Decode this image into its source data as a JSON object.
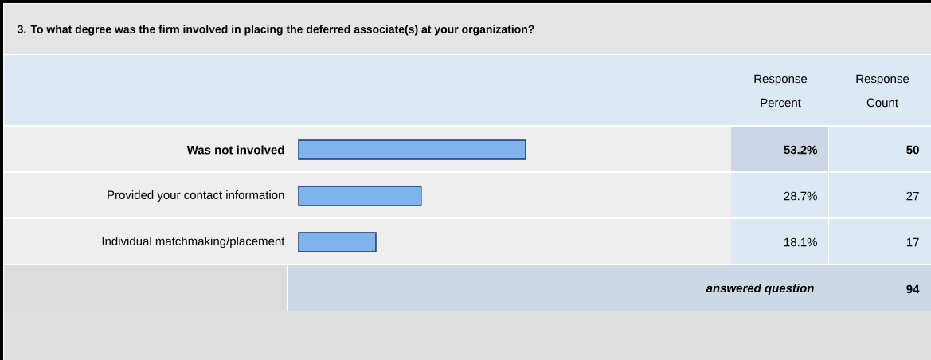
{
  "chart_data": {
    "type": "bar",
    "orientation": "horizontal",
    "title": "3. To what degree was the firm involved in placing the deferred associate(s) at your organization?",
    "categories": [
      "Was not involved",
      "Provided your contact information",
      "Individual matchmaking/placement"
    ],
    "values": [
      53.2,
      28.7,
      18.1
    ],
    "value_labels": [
      "53.2%",
      "28.7%",
      "18.1%"
    ],
    "color": "#7fb3ec",
    "annotations": [
      "Response Percent",
      "Response Count",
      "50",
      "27",
      "17",
      "answered question",
      "94"
    ]
  }
}
